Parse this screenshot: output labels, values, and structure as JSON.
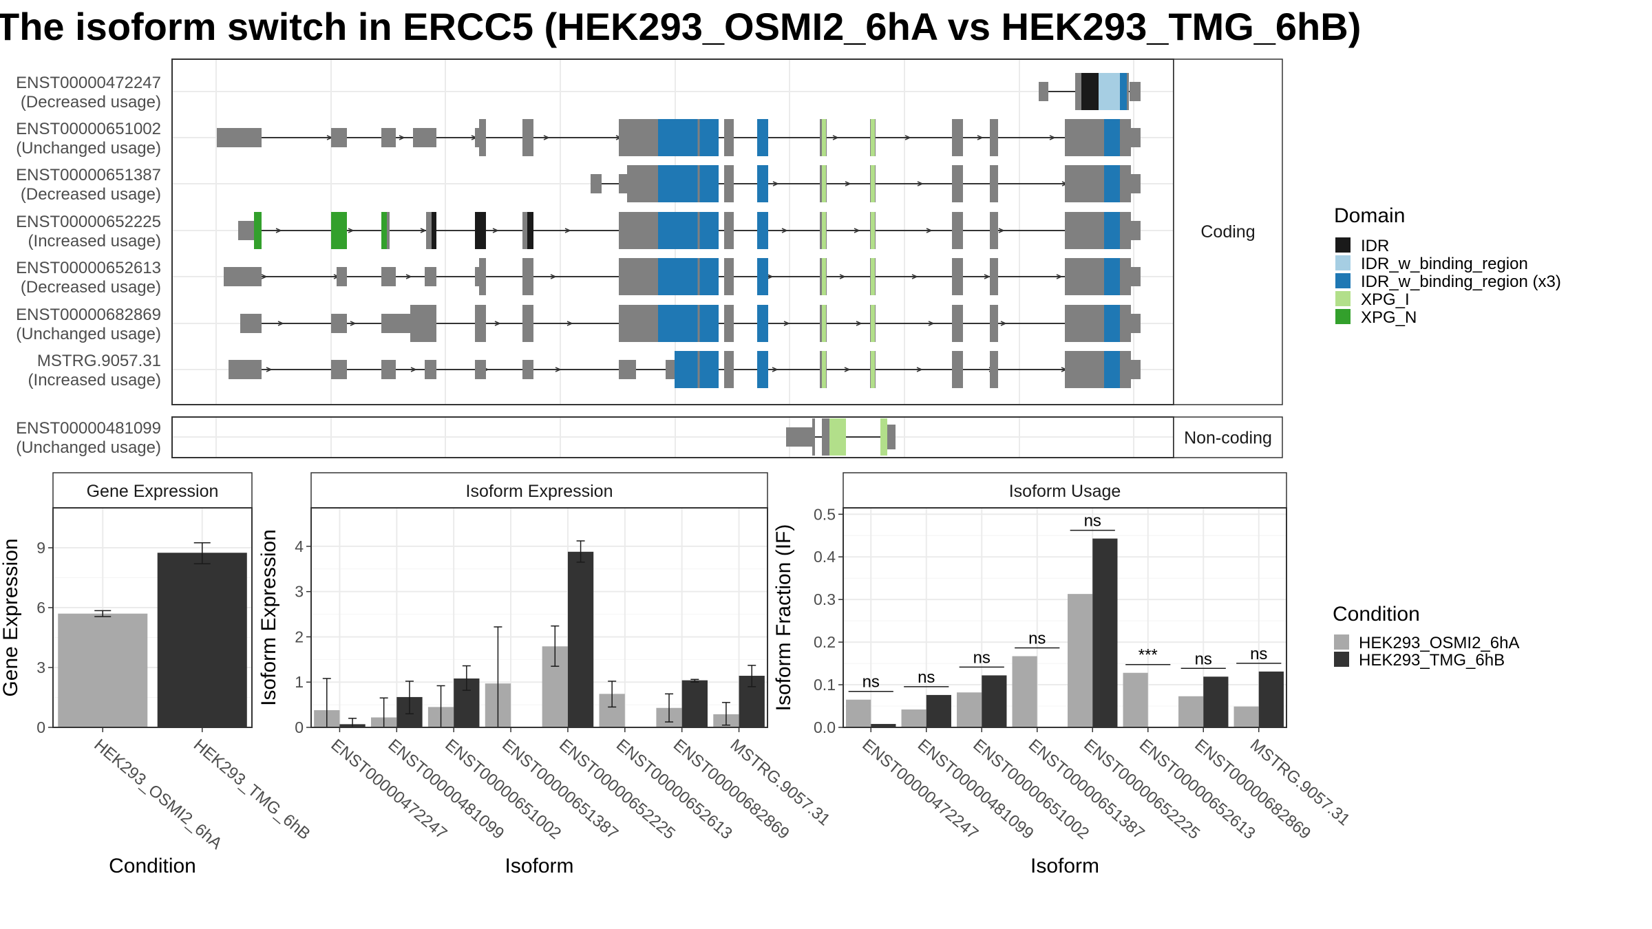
{
  "title": "The isoform switch in ERCC5 (HEK293_OSMI2_6hA vs HEK293_TMG_6hB)",
  "colors": {
    "exon": "#808080",
    "IDR": "#1a1a1a",
    "IDR_w_binding_region": "#a6cee3",
    "IDR_w_binding_region (x3)": "#1f78b4",
    "XPG_I": "#b2df8a",
    "XPG_N": "#33a02c",
    "cond_a": "#a9a9a9",
    "cond_b": "#333333"
  },
  "structure": {
    "coding_strip": "Coding",
    "noncoding_strip": "Non-coding",
    "transcripts": [
      {
        "id": "ENST00000472247",
        "usage": "(Decreased usage)",
        "coding": true
      },
      {
        "id": "ENST00000651002",
        "usage": "(Unchanged usage)",
        "coding": true
      },
      {
        "id": "ENST00000651387",
        "usage": "(Decreased usage)",
        "coding": true
      },
      {
        "id": "ENST00000652225",
        "usage": "(Increased usage)",
        "coding": true
      },
      {
        "id": "ENST00000652613",
        "usage": "(Decreased usage)",
        "coding": true
      },
      {
        "id": "ENST00000682869",
        "usage": "(Unchanged usage)",
        "coding": true
      },
      {
        "id": "MSTRG.9057.31",
        "usage": "(Increased usage)",
        "coding": true
      },
      {
        "id": "ENST00000481099",
        "usage": "(Unchanged usage)",
        "coding": false
      }
    ]
  },
  "legend_domain": {
    "title": "Domain",
    "items": [
      {
        "label": "IDR",
        "color": "#1a1a1a"
      },
      {
        "label": "IDR_w_binding_region",
        "color": "#a6cee3"
      },
      {
        "label": "IDR_w_binding_region (x3)",
        "color": "#1f78b4"
      },
      {
        "label": "XPG_I",
        "color": "#b2df8a"
      },
      {
        "label": "XPG_N",
        "color": "#33a02c"
      }
    ]
  },
  "legend_condition": {
    "title": "Condition",
    "items": [
      {
        "label": "HEK293_OSMI2_6hA",
        "color": "#a9a9a9"
      },
      {
        "label": "HEK293_TMG_6hB",
        "color": "#333333"
      }
    ]
  },
  "chart_data": [
    {
      "type": "bar",
      "title": "Gene Expression",
      "xlabel": "Condition",
      "ylabel": "Gene Expression",
      "categories": [
        "HEK293_OSMI2_6hA",
        "HEK293_TMG_6hB"
      ],
      "values": [
        5.7,
        8.75
      ],
      "err_low": [
        5.55,
        8.2
      ],
      "err_high": [
        5.85,
        9.25
      ],
      "ylim": [
        0,
        11
      ],
      "yticks": [
        0,
        3,
        6,
        9
      ]
    },
    {
      "type": "bar",
      "title": "Isoform Expression",
      "xlabel": "Isoform",
      "ylabel": "Isoform Expression",
      "categories": [
        "ENST00000472247",
        "ENST00000481099",
        "ENST00000651002",
        "ENST00000651387",
        "ENST00000652225",
        "ENST00000652613",
        "ENST00000682869",
        "MSTRG.9057.31"
      ],
      "series": [
        {
          "name": "HEK293_OSMI2_6hA",
          "values": [
            0.38,
            0.22,
            0.45,
            0.97,
            1.79,
            0.74,
            0.43,
            0.29
          ],
          "err_low": [
            0,
            0,
            0,
            0,
            1.35,
            0.45,
            0.12,
            0.05
          ],
          "err_high": [
            1.08,
            0.65,
            0.92,
            2.22,
            2.24,
            1.02,
            0.74,
            0.55
          ]
        },
        {
          "name": "HEK293_TMG_6hB",
          "values": [
            0.07,
            0.67,
            1.08,
            0.0,
            3.88,
            0.0,
            1.04,
            1.14
          ],
          "err_low": [
            0,
            0.3,
            0.82,
            0,
            3.65,
            0,
            1.0,
            0.9
          ],
          "err_high": [
            0.2,
            1.02,
            1.36,
            0,
            4.12,
            0,
            1.06,
            1.37
          ]
        }
      ],
      "ylim": [
        0,
        4.85
      ],
      "yticks": [
        0,
        1,
        2,
        3,
        4
      ]
    },
    {
      "type": "bar",
      "title": "Isoform Usage",
      "xlabel": "Isoform",
      "ylabel": "Isoform Fraction (IF)",
      "categories": [
        "ENST00000472247",
        "ENST00000481099",
        "ENST00000651002",
        "ENST00000651387",
        "ENST00000652225",
        "ENST00000652613",
        "ENST00000682869",
        "MSTRG.9057.31"
      ],
      "series": [
        {
          "name": "HEK293_OSMI2_6hA",
          "values": [
            0.065,
            0.042,
            0.082,
            0.167,
            0.313,
            0.128,
            0.073,
            0.049
          ]
        },
        {
          "name": "HEK293_TMG_6hB",
          "values": [
            0.008,
            0.076,
            0.122,
            0.0,
            0.443,
            0.0,
            0.119,
            0.131
          ]
        }
      ],
      "significance": [
        "ns",
        "ns",
        "ns",
        "ns",
        "ns",
        "***",
        "ns",
        "ns"
      ],
      "ylim": [
        0,
        0.515
      ],
      "yticks": [
        0.0,
        0.1,
        0.2,
        0.3,
        0.4,
        0.5
      ]
    }
  ]
}
